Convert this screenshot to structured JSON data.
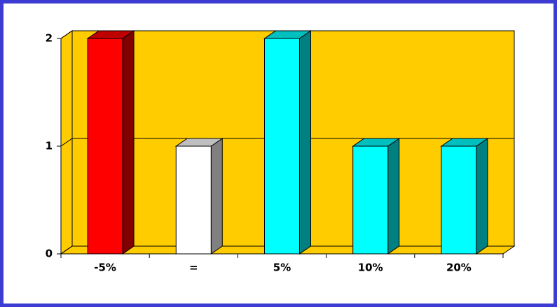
{
  "chart_data": {
    "type": "bar",
    "categories": [
      "-5%",
      "=",
      "5%",
      "10%",
      "20%"
    ],
    "values": [
      2,
      1,
      2,
      1,
      1
    ],
    "colors": [
      "#ff0000",
      "#ffffff",
      "#00ffff",
      "#00ffff",
      "#00ffff"
    ],
    "wall_color": "#ffcc00",
    "ylim": [
      0,
      2
    ],
    "yticks": [
      0,
      1,
      2
    ],
    "grid": true
  }
}
